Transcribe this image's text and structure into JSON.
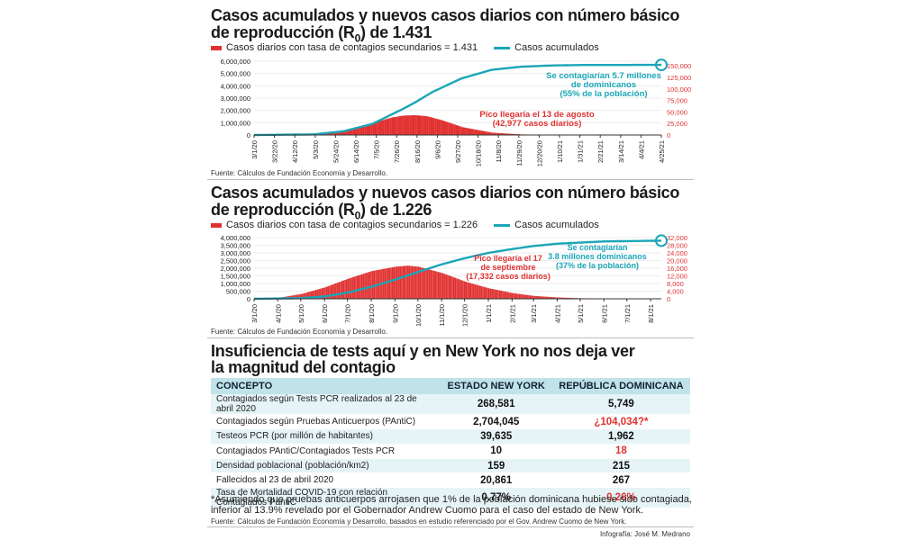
{
  "header1": {
    "line1": "Casos acumulados y nuevos casos diarios  con número básico",
    "line2_a": "de reproducción (R",
    "line2_sub": "0",
    "line2_b": ") de 1.431"
  },
  "legend1": {
    "bars": "Casos diarios con tasa de contagios secundarios = 1.431",
    "line": "Casos acumulados"
  },
  "source1": "Fuente: Cálculos de Fundación Economía y Desarrollo.",
  "header2": {
    "line1": "Casos acumulados y nuevos casos diarios  con número básico",
    "line2_a": "de reproducción (R",
    "line2_sub": "0",
    "line2_b": ") de 1.226"
  },
  "legend2": {
    "bars": "Casos diarios con tasa de contagios secundarios = 1.226",
    "line": "Casos acumulados"
  },
  "source2": "Fuente: Cálculos de Fundación Economía y Desarrollo.",
  "section3": {
    "title1": "Insuficiencia de tests aquí y en New York no nos deja ver",
    "title2": "la magnitud del contagio"
  },
  "table": {
    "headers": [
      "CONCEPTO",
      "ESTADO NEW YORK",
      "REPÚBLICA DOMINICANA"
    ],
    "rows": [
      [
        "Contagiados según Tests PCR realizados al 23 de abril 2020",
        "268,581",
        "5,749"
      ],
      [
        "Contagiados según Pruebas Anticuerpos (PAntiC)",
        "2,704,045",
        "¿104,034?*"
      ],
      [
        "Testeos PCR (por millón de habitantes)",
        "39,635",
        "1,962"
      ],
      [
        "Contagiados PAntiC/Contagiados Tests PCR",
        "10",
        "18"
      ],
      [
        "Densidad poblacional  (población/km2)",
        "159",
        "215"
      ],
      [
        "Fallecidos al 23 de abril 2020",
        "20,861",
        "267"
      ],
      [
        "Tasa de Mortalidad COVID-19 con relación Contagiados PantiC",
        "0.77%",
        "0.26%"
      ]
    ],
    "red_cells": [
      "1-2",
      "3-2",
      "6-2"
    ]
  },
  "note": "*Asumiendo que pruebas anticuerpos arrojasen que 1% de la población dominicana hubiese sido contagiada, inferior al 13.9% revelado por el Gobernador Andrew Cuomo para el caso del estado de New York.",
  "source3": "Fuente: Cálculos de Fundación Economía y Desarrollo, basados en estudio referenciado por el Gov. Andrew Cuomo de New York.",
  "credit": "Infografía: José M. Medrano",
  "colors": {
    "bars": "#e03131",
    "line": "#1aa6b7",
    "header_fill": "#bfe3e9",
    "row_fill": "#e6f4f7"
  },
  "chart_data": [
    {
      "type": "bar+line",
      "ylim_left": [
        0,
        6000000
      ],
      "yticks_left": [
        "0",
        "1,000,000",
        "2,000,000",
        "3,000,000",
        "4,000,000",
        "5,000,000",
        "6,000,000"
      ],
      "ylim_right": [
        0,
        160000
      ],
      "yticks_right": [
        "0",
        "25,000",
        "50,000",
        "75,000",
        "100,000",
        "125,000",
        "150,000"
      ],
      "yticks_right_values": [
        0,
        25000,
        50000,
        75000,
        100000,
        125000,
        150000
      ],
      "x_range": [
        "2020-03-01",
        "2021-04-25"
      ],
      "x_ticks": [
        "3/1/20",
        "3/22/20",
        "4/12/20",
        "5/3/20",
        "5/24/20",
        "6/14/20",
        "7/5/20",
        "7/26/20",
        "8/16/20",
        "9/6/20",
        "9/27/20",
        "10/18/20",
        "11/8/20",
        "11/29/20",
        "12/20/20",
        "1/10/21",
        "1/31/21",
        "2/21/21",
        "3/14/21",
        "4/4/21",
        "4/25/21"
      ],
      "series": [
        {
          "name": "Casos diarios con tasa de contagios secundarios = 1.431",
          "kind": "bar",
          "axis": "right",
          "x": [
            "2020-03-01",
            "2020-04-01",
            "2020-05-01",
            "2020-06-01",
            "2020-07-01",
            "2020-07-20",
            "2020-08-01",
            "2020-08-13",
            "2020-08-25",
            "2020-09-10",
            "2020-10-01",
            "2020-11-01",
            "2020-12-01",
            "2021-01-01",
            "2021-02-01",
            "2021-03-01",
            "2021-04-25"
          ],
          "values": [
            0,
            800,
            3000,
            9000,
            26000,
            38000,
            42000,
            42977,
            41000,
            32000,
            17000,
            5000,
            1200,
            300,
            80,
            20,
            0
          ]
        },
        {
          "name": "Casos acumulados",
          "kind": "line",
          "axis": "left",
          "x": [
            "2020-03-01",
            "2020-05-01",
            "2020-06-01",
            "2020-07-01",
            "2020-08-01",
            "2020-08-13",
            "2020-09-01",
            "2020-10-01",
            "2020-11-01",
            "2020-12-01",
            "2021-01-01",
            "2021-02-01",
            "2021-04-25"
          ],
          "values": [
            0,
            50000,
            300000,
            900000,
            2100000,
            2600000,
            3500000,
            4600000,
            5300000,
            5550000,
            5650000,
            5690000,
            5700000
          ]
        }
      ],
      "annotations": [
        {
          "text": [
            "Se contagiarían 5.7 millones",
            "de dominicanos",
            "(55% de la población)"
          ],
          "color": "#1aa6b7"
        },
        {
          "text": [
            "Pico llegaría el 13 de agosto",
            "(42,977 casos diarios)"
          ],
          "color": "#e03131"
        }
      ]
    },
    {
      "type": "bar+line",
      "ylim_left": [
        0,
        4000000
      ],
      "yticks_left": [
        "0",
        "500,000",
        "1,000,000",
        "1,500,000",
        "2,000,000",
        "2,500,000",
        "3,000,000",
        "3,500,000",
        "4,000,000"
      ],
      "ylim_right": [
        0,
        32000
      ],
      "yticks_right": [
        "0",
        "4,000",
        "8,000",
        "12,000",
        "16,000",
        "20,000",
        "24,000",
        "28,000",
        "32,000"
      ],
      "yticks_right_values": [
        0,
        4000,
        8000,
        12000,
        16000,
        20000,
        24000,
        28000,
        32000
      ],
      "x_range": [
        "2020-03-01",
        "2021-08-15"
      ],
      "x_ticks": [
        "3/1/20",
        "4/1/20",
        "5/1/20",
        "6/1/20",
        "7/1/20",
        "8/1/20",
        "9/1/20",
        "10/1/20",
        "11/1/20",
        "12/1/20",
        "1/1/21",
        "2/1/21",
        "3/1/21",
        "4/1/21",
        "5/1/21",
        "6/1/21",
        "7/1/21",
        "8/1/21"
      ],
      "series": [
        {
          "name": "Casos diarios con tasa de contagios secundarios = 1.226",
          "kind": "bar",
          "axis": "right",
          "x": [
            "2020-03-01",
            "2020-04-01",
            "2020-05-01",
            "2020-06-01",
            "2020-07-01",
            "2020-08-01",
            "2020-09-01",
            "2020-09-17",
            "2020-10-01",
            "2020-11-01",
            "2020-12-01",
            "2021-01-01",
            "2021-02-01",
            "2021-03-01",
            "2021-04-01",
            "2021-05-01",
            "2021-06-01",
            "2021-07-01",
            "2021-08-15"
          ],
          "values": [
            0,
            500,
            2500,
            6000,
            10500,
            14500,
            16800,
            17332,
            16800,
            13500,
            9000,
            5500,
            3000,
            1500,
            700,
            300,
            120,
            50,
            20
          ]
        },
        {
          "name": "Casos acumulados",
          "kind": "line",
          "axis": "left",
          "x": [
            "2020-03-01",
            "2020-05-01",
            "2020-06-01",
            "2020-07-01",
            "2020-08-01",
            "2020-09-01",
            "2020-10-01",
            "2020-11-01",
            "2020-12-01",
            "2021-01-01",
            "2021-02-01",
            "2021-03-01",
            "2021-04-01",
            "2021-06-01",
            "2021-08-15"
          ],
          "values": [
            0,
            40000,
            150000,
            400000,
            780000,
            1250000,
            1750000,
            2250000,
            2650000,
            3000000,
            3250000,
            3450000,
            3600000,
            3750000,
            3800000
          ]
        }
      ],
      "annotations": [
        {
          "text": [
            "Se contagiarían",
            "3.8 millones dominicanos",
            "(37% de la población)"
          ],
          "color": "#1aa6b7"
        },
        {
          "text": [
            "Pico  llegaría el 17",
            "de septiembre",
            "(17,332 casos diarios)"
          ],
          "color": "#e03131"
        }
      ]
    }
  ]
}
